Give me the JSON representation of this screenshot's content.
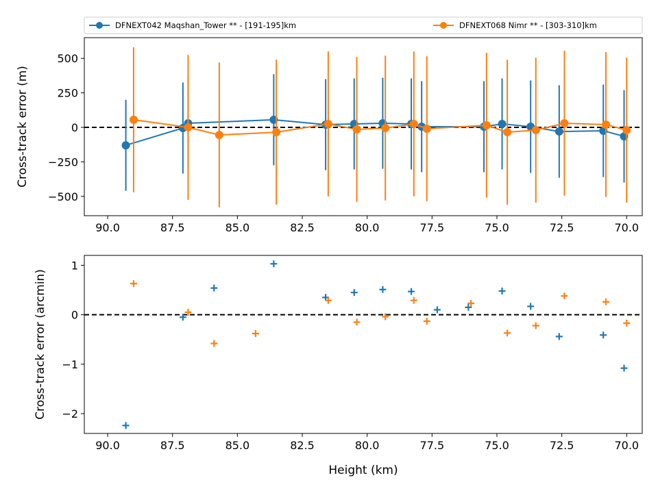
{
  "chart_data": [
    {
      "type": "line",
      "panel": "top",
      "ylabel": "Cross-track error (m)",
      "xlabel": "",
      "xlim": [
        90.9,
        69.4
      ],
      "ylim": [
        -640,
        650
      ],
      "xticks": [
        90.0,
        87.5,
        85.0,
        82.5,
        80.0,
        77.5,
        75.0,
        72.5,
        70.0
      ],
      "xtick_labels": [
        "90.0",
        "87.5",
        "85.0",
        "82.5",
        "80.0",
        "77.5",
        "75.0",
        "72.5",
        "70.0"
      ],
      "yticks": [
        500,
        250,
        0,
        -250,
        -500
      ],
      "ytick_labels": [
        "500",
        "250",
        "0",
        "−250",
        "−500"
      ],
      "zero_line": true,
      "grid": false,
      "legend": {
        "placement": "above",
        "entries": [
          "DFNEXT042 Maqshan_Tower **  - [191-195]km",
          "DFNEXT068 Nimr **  - [303-310]km"
        ]
      },
      "series": [
        {
          "name": "DFNEXT042 Maqshan_Tower **  - [191-195]km",
          "color": "#1f77b4",
          "x": [
            89.3,
            87.1,
            86.9,
            83.6,
            81.6,
            80.5,
            79.4,
            78.3,
            77.9,
            75.5,
            74.8,
            73.7,
            72.6,
            70.9,
            70.1
          ],
          "y": [
            -130,
            -5,
            30,
            55,
            20,
            25,
            30,
            25,
            5,
            5,
            25,
            5,
            -30,
            -25,
            -65
          ],
          "yerr": [
            330,
            330,
            330,
            330,
            330,
            330,
            330,
            330,
            330,
            330,
            330,
            335,
            335,
            335,
            335
          ]
        },
        {
          "name": "DFNEXT068 Nimr **  - [303-310]km",
          "color": "#ff7f0e",
          "x": [
            89.0,
            86.9,
            85.7,
            83.5,
            81.5,
            80.4,
            79.3,
            78.2,
            77.7,
            75.4,
            74.6,
            73.5,
            72.4,
            70.8,
            70.0
          ],
          "y": [
            55,
            0,
            -55,
            -35,
            25,
            -15,
            -5,
            25,
            -10,
            15,
            -35,
            -20,
            30,
            20,
            -20
          ],
          "yerr": [
            525,
            525,
            525,
            525,
            525,
            525,
            525,
            525,
            525,
            525,
            525,
            525,
            525,
            525,
            525
          ]
        }
      ]
    },
    {
      "type": "scatter",
      "panel": "bottom",
      "ylabel": "Cross-track error (arcmin)",
      "xlabel": "Height (km)",
      "xlim": [
        90.9,
        69.4
      ],
      "ylim": [
        -2.4,
        1.2
      ],
      "xticks": [
        90.0,
        87.5,
        85.0,
        82.5,
        80.0,
        77.5,
        75.0,
        72.5,
        70.0
      ],
      "xtick_labels": [
        "90.0",
        "87.5",
        "85.0",
        "82.5",
        "80.0",
        "77.5",
        "75.0",
        "72.5",
        "70.0"
      ],
      "yticks": [
        1,
        0,
        -1,
        -2
      ],
      "ytick_labels": [
        "1",
        "0",
        "−1",
        "−2"
      ],
      "zero_line": true,
      "grid": false,
      "marker": "plus",
      "series": [
        {
          "color": "#1f77b4",
          "x": [
            89.3,
            87.1,
            85.9,
            83.6,
            81.6,
            80.5,
            79.4,
            78.3,
            77.3,
            76.1,
            74.8,
            73.7,
            72.6,
            70.9,
            70.1
          ],
          "y": [
            -2.24,
            -0.05,
            0.54,
            1.03,
            0.35,
            0.45,
            0.51,
            0.47,
            0.1,
            0.15,
            0.48,
            0.17,
            -0.44,
            -0.41,
            -1.08
          ]
        },
        {
          "color": "#ff7f0e",
          "x": [
            89.0,
            86.9,
            85.9,
            84.3,
            81.5,
            80.4,
            79.3,
            78.2,
            77.7,
            76.0,
            74.6,
            73.5,
            72.4,
            70.8,
            70.0
          ],
          "y": [
            0.63,
            0.05,
            -0.58,
            -0.38,
            0.29,
            -0.15,
            -0.04,
            0.29,
            -0.13,
            0.23,
            -0.37,
            -0.22,
            0.38,
            0.26,
            -0.17
          ]
        }
      ]
    }
  ]
}
